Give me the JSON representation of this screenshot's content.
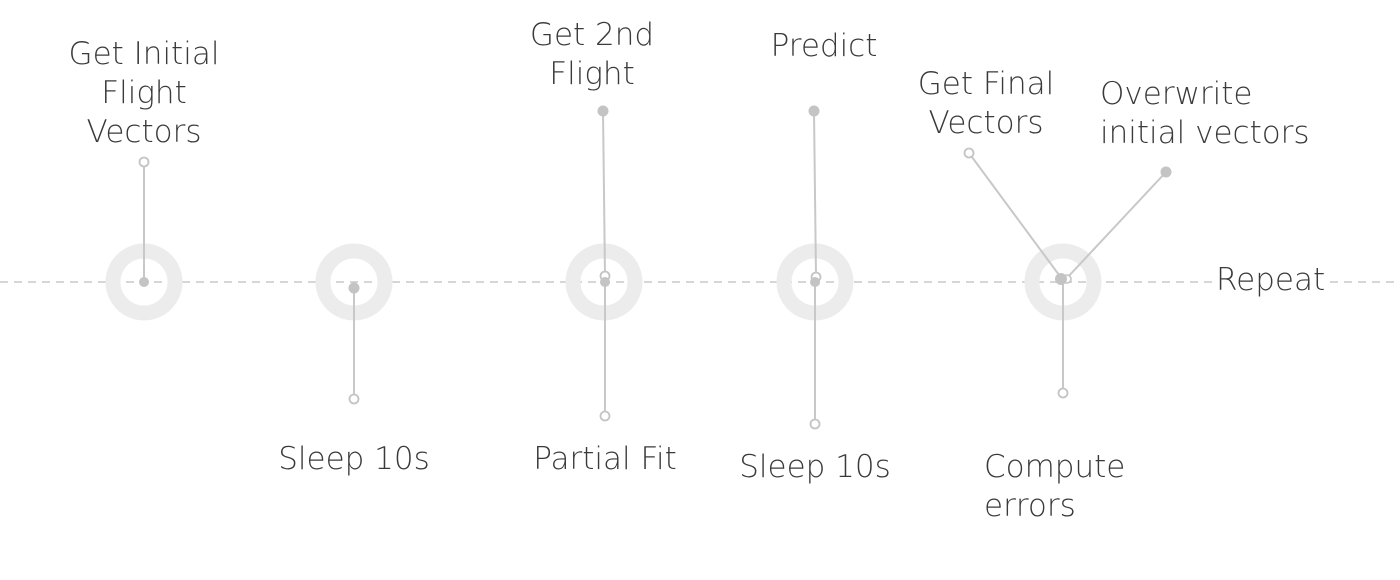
{
  "timeline": {
    "steps": [
      {
        "label_lines": [
          "Get Initial",
          "Flight",
          "Vectors"
        ]
      },
      {
        "label_lines": [
          "Sleep 10s"
        ]
      },
      {
        "label_lines": [
          "Get 2nd",
          "Flight"
        ],
        "below_label_lines": [
          "Partial Fit"
        ]
      },
      {
        "label_lines": [
          "Predict"
        ],
        "below_label_lines": [
          "Sleep 10s"
        ]
      },
      {
        "label_lines": [
          "Get Final",
          "Vectors"
        ],
        "second_label_lines": [
          "Overwrite",
          "initial vectors"
        ],
        "below_label_lines": [
          "Compute",
          "errors"
        ]
      }
    ],
    "end_label": "Repeat"
  },
  "colors": {
    "ring": "#ececec",
    "line": "#c8c8c8",
    "dot": "#c4c4c4",
    "axis": "#c9c9c9",
    "text": "#3a3a3a"
  }
}
